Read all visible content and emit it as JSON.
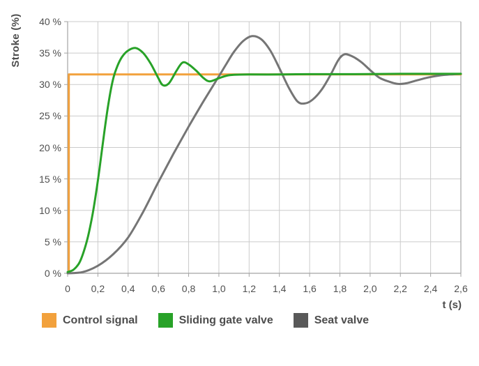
{
  "chart_data": {
    "type": "line",
    "title": "",
    "ylabel": "Stroke (%)",
    "xlabel": "t (s)",
    "xlim": [
      0,
      2.6
    ],
    "ylim": [
      0,
      40
    ],
    "grid": true,
    "legend_position": "bottom",
    "grid_color": "#cbcbcb",
    "frame_color": "#a3a3a3",
    "xtick_values": [
      0,
      0.2,
      0.4,
      0.6,
      0.8,
      1.0,
      1.2,
      1.4,
      1.6,
      1.8,
      2.0,
      2.2,
      2.4,
      2.6
    ],
    "xtick_labels": [
      "0",
      "0,2",
      "0,4",
      "0,6",
      "0,8",
      "1,0",
      "1,2",
      "1,4",
      "1,6",
      "1,8",
      "2,0",
      "2,2",
      "2,4",
      "2,6"
    ],
    "ytick_values": [
      0,
      5,
      10,
      15,
      20,
      25,
      30,
      35,
      40
    ],
    "ytick_labels": [
      "0 %",
      "5 %",
      "10 %",
      "15 %",
      "20 %",
      "25 %",
      "30 %",
      "35 %",
      "40 %"
    ],
    "series": [
      {
        "name": "Control signal",
        "color": "#F2A13C",
        "swatch": "#F2A13C",
        "z": 1,
        "smooth": false,
        "points": [
          [
            0.008,
            0
          ],
          [
            0.008,
            31.6
          ],
          [
            2.6,
            31.6
          ]
        ]
      },
      {
        "name": "Sliding gate valve",
        "color": "#28A228",
        "swatch": "#28A228",
        "z": 3,
        "smooth": true,
        "points": [
          [
            0.0,
            0.2
          ],
          [
            0.04,
            0.6
          ],
          [
            0.08,
            1.8
          ],
          [
            0.12,
            4.5
          ],
          [
            0.15,
            7.5
          ],
          [
            0.18,
            11.5
          ],
          [
            0.21,
            16.5
          ],
          [
            0.24,
            22.0
          ],
          [
            0.27,
            27.0
          ],
          [
            0.3,
            30.8
          ],
          [
            0.33,
            33.0
          ],
          [
            0.36,
            34.4
          ],
          [
            0.4,
            35.4
          ],
          [
            0.45,
            35.8
          ],
          [
            0.5,
            35.0
          ],
          [
            0.55,
            33.3
          ],
          [
            0.6,
            31.0
          ],
          [
            0.63,
            29.9
          ],
          [
            0.67,
            30.2
          ],
          [
            0.72,
            32.2
          ],
          [
            0.76,
            33.5
          ],
          [
            0.8,
            33.2
          ],
          [
            0.85,
            32.2
          ],
          [
            0.9,
            31.0
          ],
          [
            0.94,
            30.5
          ],
          [
            1.0,
            31.0
          ],
          [
            1.05,
            31.4
          ],
          [
            1.1,
            31.55
          ],
          [
            1.2,
            31.6
          ],
          [
            1.4,
            31.6
          ],
          [
            1.6,
            31.65
          ],
          [
            1.9,
            31.65
          ],
          [
            2.2,
            31.7
          ],
          [
            2.6,
            31.7
          ]
        ]
      },
      {
        "name": "Seat valve",
        "color": "#757575",
        "swatch": "#595959",
        "z": 2,
        "smooth": true,
        "points": [
          [
            0.0,
            0.0
          ],
          [
            0.1,
            0.2
          ],
          [
            0.2,
            1.2
          ],
          [
            0.3,
            3.0
          ],
          [
            0.4,
            5.7
          ],
          [
            0.5,
            9.8
          ],
          [
            0.6,
            14.5
          ],
          [
            0.7,
            19.0
          ],
          [
            0.8,
            23.3
          ],
          [
            0.9,
            27.4
          ],
          [
            1.0,
            31.3
          ],
          [
            1.05,
            33.3
          ],
          [
            1.1,
            35.2
          ],
          [
            1.16,
            36.9
          ],
          [
            1.22,
            37.7
          ],
          [
            1.28,
            37.2
          ],
          [
            1.34,
            35.4
          ],
          [
            1.4,
            32.6
          ],
          [
            1.46,
            29.6
          ],
          [
            1.52,
            27.3
          ],
          [
            1.57,
            27.0
          ],
          [
            1.62,
            27.6
          ],
          [
            1.68,
            29.2
          ],
          [
            1.74,
            31.6
          ],
          [
            1.79,
            33.9
          ],
          [
            1.83,
            34.8
          ],
          [
            1.88,
            34.5
          ],
          [
            1.94,
            33.6
          ],
          [
            2.0,
            32.3
          ],
          [
            2.06,
            31.1
          ],
          [
            2.12,
            30.5
          ],
          [
            2.18,
            30.1
          ],
          [
            2.24,
            30.2
          ],
          [
            2.3,
            30.6
          ],
          [
            2.38,
            31.1
          ],
          [
            2.46,
            31.45
          ],
          [
            2.53,
            31.6
          ],
          [
            2.6,
            31.7
          ]
        ]
      }
    ]
  }
}
